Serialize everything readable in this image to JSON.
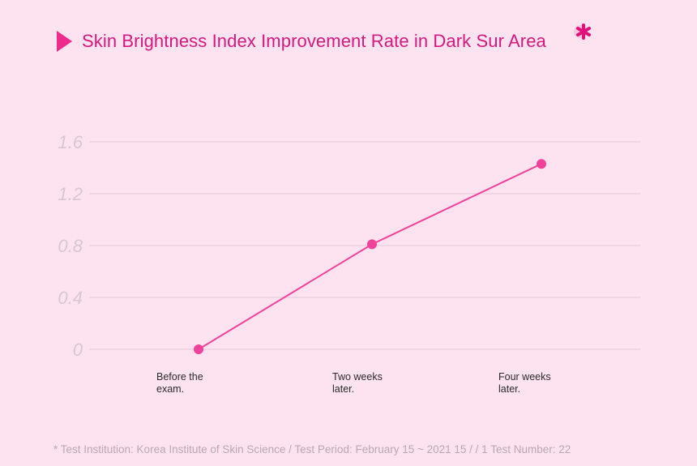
{
  "title": "Skin Brightness Index Improvement Rate in Dark Sur Area",
  "footnote": "* Test Institution: Korea Institute of Skin Science / Test Period: February 15 ~ 2021 15 / / 1 Test Number: 22",
  "colors": {
    "accent": "#ec2b8c",
    "line": "#f0429a",
    "grid": "#e9cddd",
    "background": "#fde3ef"
  },
  "chart_data": {
    "type": "line",
    "title": "Skin Brightness Index Improvement Rate in Dark Sur Area",
    "categories": [
      "Before the exam.",
      "Two weeks later.",
      "Four weeks later."
    ],
    "category_lines": [
      [
        "Before the",
        "exam."
      ],
      [
        "Two weeks",
        "later."
      ],
      [
        "Four weeks",
        "later."
      ]
    ],
    "values": [
      0,
      0.81,
      1.43
    ],
    "ylim": [
      0,
      1.6
    ],
    "yticks": [
      "0",
      "0.4",
      "0.8",
      "1.2",
      "1.6"
    ],
    "grid": true,
    "legend": "none"
  }
}
